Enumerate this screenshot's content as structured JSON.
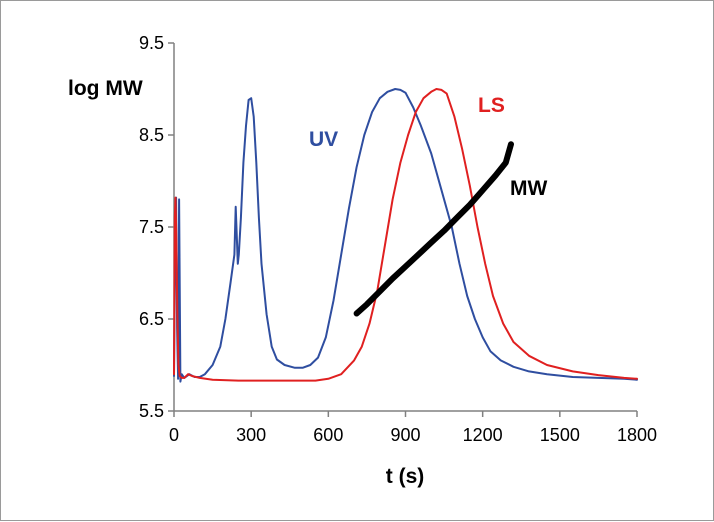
{
  "chart_data": {
    "type": "line",
    "xlabel": "t (s)",
    "ylabel": "log MW",
    "xlim": [
      0,
      1800
    ],
    "ylim": [
      5.5,
      9.5
    ],
    "x_ticks": [
      "0",
      "300",
      "600",
      "900",
      "1200",
      "1500",
      "1800"
    ],
    "y_ticks": [
      "5.5",
      "6.5",
      "7.5",
      "8.5",
      "9.5"
    ],
    "series": [
      {
        "name": "UV",
        "color": "#2f4ea0",
        "points": [
          [
            0,
            5.88
          ],
          [
            4,
            7.2
          ],
          [
            8,
            7.82
          ],
          [
            12,
            6.4
          ],
          [
            16,
            5.85
          ],
          [
            20,
            7.8
          ],
          [
            25,
            5.82
          ],
          [
            30,
            5.9
          ],
          [
            40,
            5.86
          ],
          [
            60,
            5.9
          ],
          [
            80,
            5.87
          ],
          [
            100,
            5.87
          ],
          [
            120,
            5.9
          ],
          [
            150,
            6.0
          ],
          [
            180,
            6.2
          ],
          [
            200,
            6.5
          ],
          [
            220,
            6.9
          ],
          [
            235,
            7.2
          ],
          [
            240,
            7.72
          ],
          [
            248,
            7.1
          ],
          [
            252,
            7.2
          ],
          [
            260,
            7.6
          ],
          [
            270,
            8.2
          ],
          [
            280,
            8.6
          ],
          [
            290,
            8.88
          ],
          [
            300,
            8.9
          ],
          [
            310,
            8.7
          ],
          [
            320,
            8.2
          ],
          [
            330,
            7.6
          ],
          [
            340,
            7.1
          ],
          [
            360,
            6.55
          ],
          [
            380,
            6.2
          ],
          [
            400,
            6.06
          ],
          [
            430,
            6.0
          ],
          [
            470,
            5.97
          ],
          [
            500,
            5.97
          ],
          [
            530,
            6.0
          ],
          [
            560,
            6.08
          ],
          [
            590,
            6.3
          ],
          [
            620,
            6.7
          ],
          [
            650,
            7.2
          ],
          [
            680,
            7.7
          ],
          [
            710,
            8.15
          ],
          [
            740,
            8.5
          ],
          [
            770,
            8.75
          ],
          [
            800,
            8.9
          ],
          [
            830,
            8.97
          ],
          [
            860,
            9.0
          ],
          [
            880,
            8.99
          ],
          [
            900,
            8.96
          ],
          [
            930,
            8.8
          ],
          [
            960,
            8.6
          ],
          [
            1000,
            8.3
          ],
          [
            1040,
            7.9
          ],
          [
            1080,
            7.5
          ],
          [
            1110,
            7.1
          ],
          [
            1140,
            6.75
          ],
          [
            1170,
            6.5
          ],
          [
            1200,
            6.3
          ],
          [
            1230,
            6.15
          ],
          [
            1270,
            6.05
          ],
          [
            1320,
            5.98
          ],
          [
            1380,
            5.93
          ],
          [
            1450,
            5.9
          ],
          [
            1550,
            5.87
          ],
          [
            1650,
            5.86
          ],
          [
            1750,
            5.85
          ],
          [
            1800,
            5.84
          ]
        ]
      },
      {
        "name": "LS",
        "color": "#e02020",
        "points": [
          [
            0,
            5.9
          ],
          [
            3,
            7.6
          ],
          [
            6,
            7.82
          ],
          [
            9,
            7.4
          ],
          [
            13,
            6.6
          ],
          [
            17,
            6.0
          ],
          [
            22,
            5.88
          ],
          [
            30,
            5.86
          ],
          [
            40,
            5.86
          ],
          [
            55,
            5.9
          ],
          [
            70,
            5.88
          ],
          [
            100,
            5.86
          ],
          [
            150,
            5.84
          ],
          [
            250,
            5.83
          ],
          [
            400,
            5.83
          ],
          [
            550,
            5.83
          ],
          [
            600,
            5.85
          ],
          [
            650,
            5.9
          ],
          [
            700,
            6.05
          ],
          [
            730,
            6.2
          ],
          [
            760,
            6.45
          ],
          [
            790,
            6.8
          ],
          [
            820,
            7.3
          ],
          [
            850,
            7.8
          ],
          [
            880,
            8.2
          ],
          [
            910,
            8.5
          ],
          [
            940,
            8.75
          ],
          [
            970,
            8.9
          ],
          [
            1000,
            8.97
          ],
          [
            1020,
            9.0
          ],
          [
            1040,
            8.99
          ],
          [
            1060,
            8.95
          ],
          [
            1090,
            8.7
          ],
          [
            1120,
            8.35
          ],
          [
            1150,
            7.95
          ],
          [
            1180,
            7.5
          ],
          [
            1210,
            7.1
          ],
          [
            1240,
            6.75
          ],
          [
            1280,
            6.45
          ],
          [
            1320,
            6.25
          ],
          [
            1380,
            6.1
          ],
          [
            1450,
            6.0
          ],
          [
            1550,
            5.93
          ],
          [
            1650,
            5.89
          ],
          [
            1750,
            5.86
          ],
          [
            1800,
            5.85
          ]
        ]
      },
      {
        "name": "MW",
        "color": "#000000",
        "points": [
          [
            710,
            6.56
          ],
          [
            750,
            6.66
          ],
          [
            800,
            6.8
          ],
          [
            850,
            6.94
          ],
          [
            900,
            7.07
          ],
          [
            950,
            7.2
          ],
          [
            1000,
            7.33
          ],
          [
            1050,
            7.46
          ],
          [
            1100,
            7.6
          ],
          [
            1150,
            7.74
          ],
          [
            1200,
            7.9
          ],
          [
            1250,
            8.06
          ],
          [
            1290,
            8.2
          ],
          [
            1310,
            8.4
          ]
        ]
      }
    ]
  }
}
